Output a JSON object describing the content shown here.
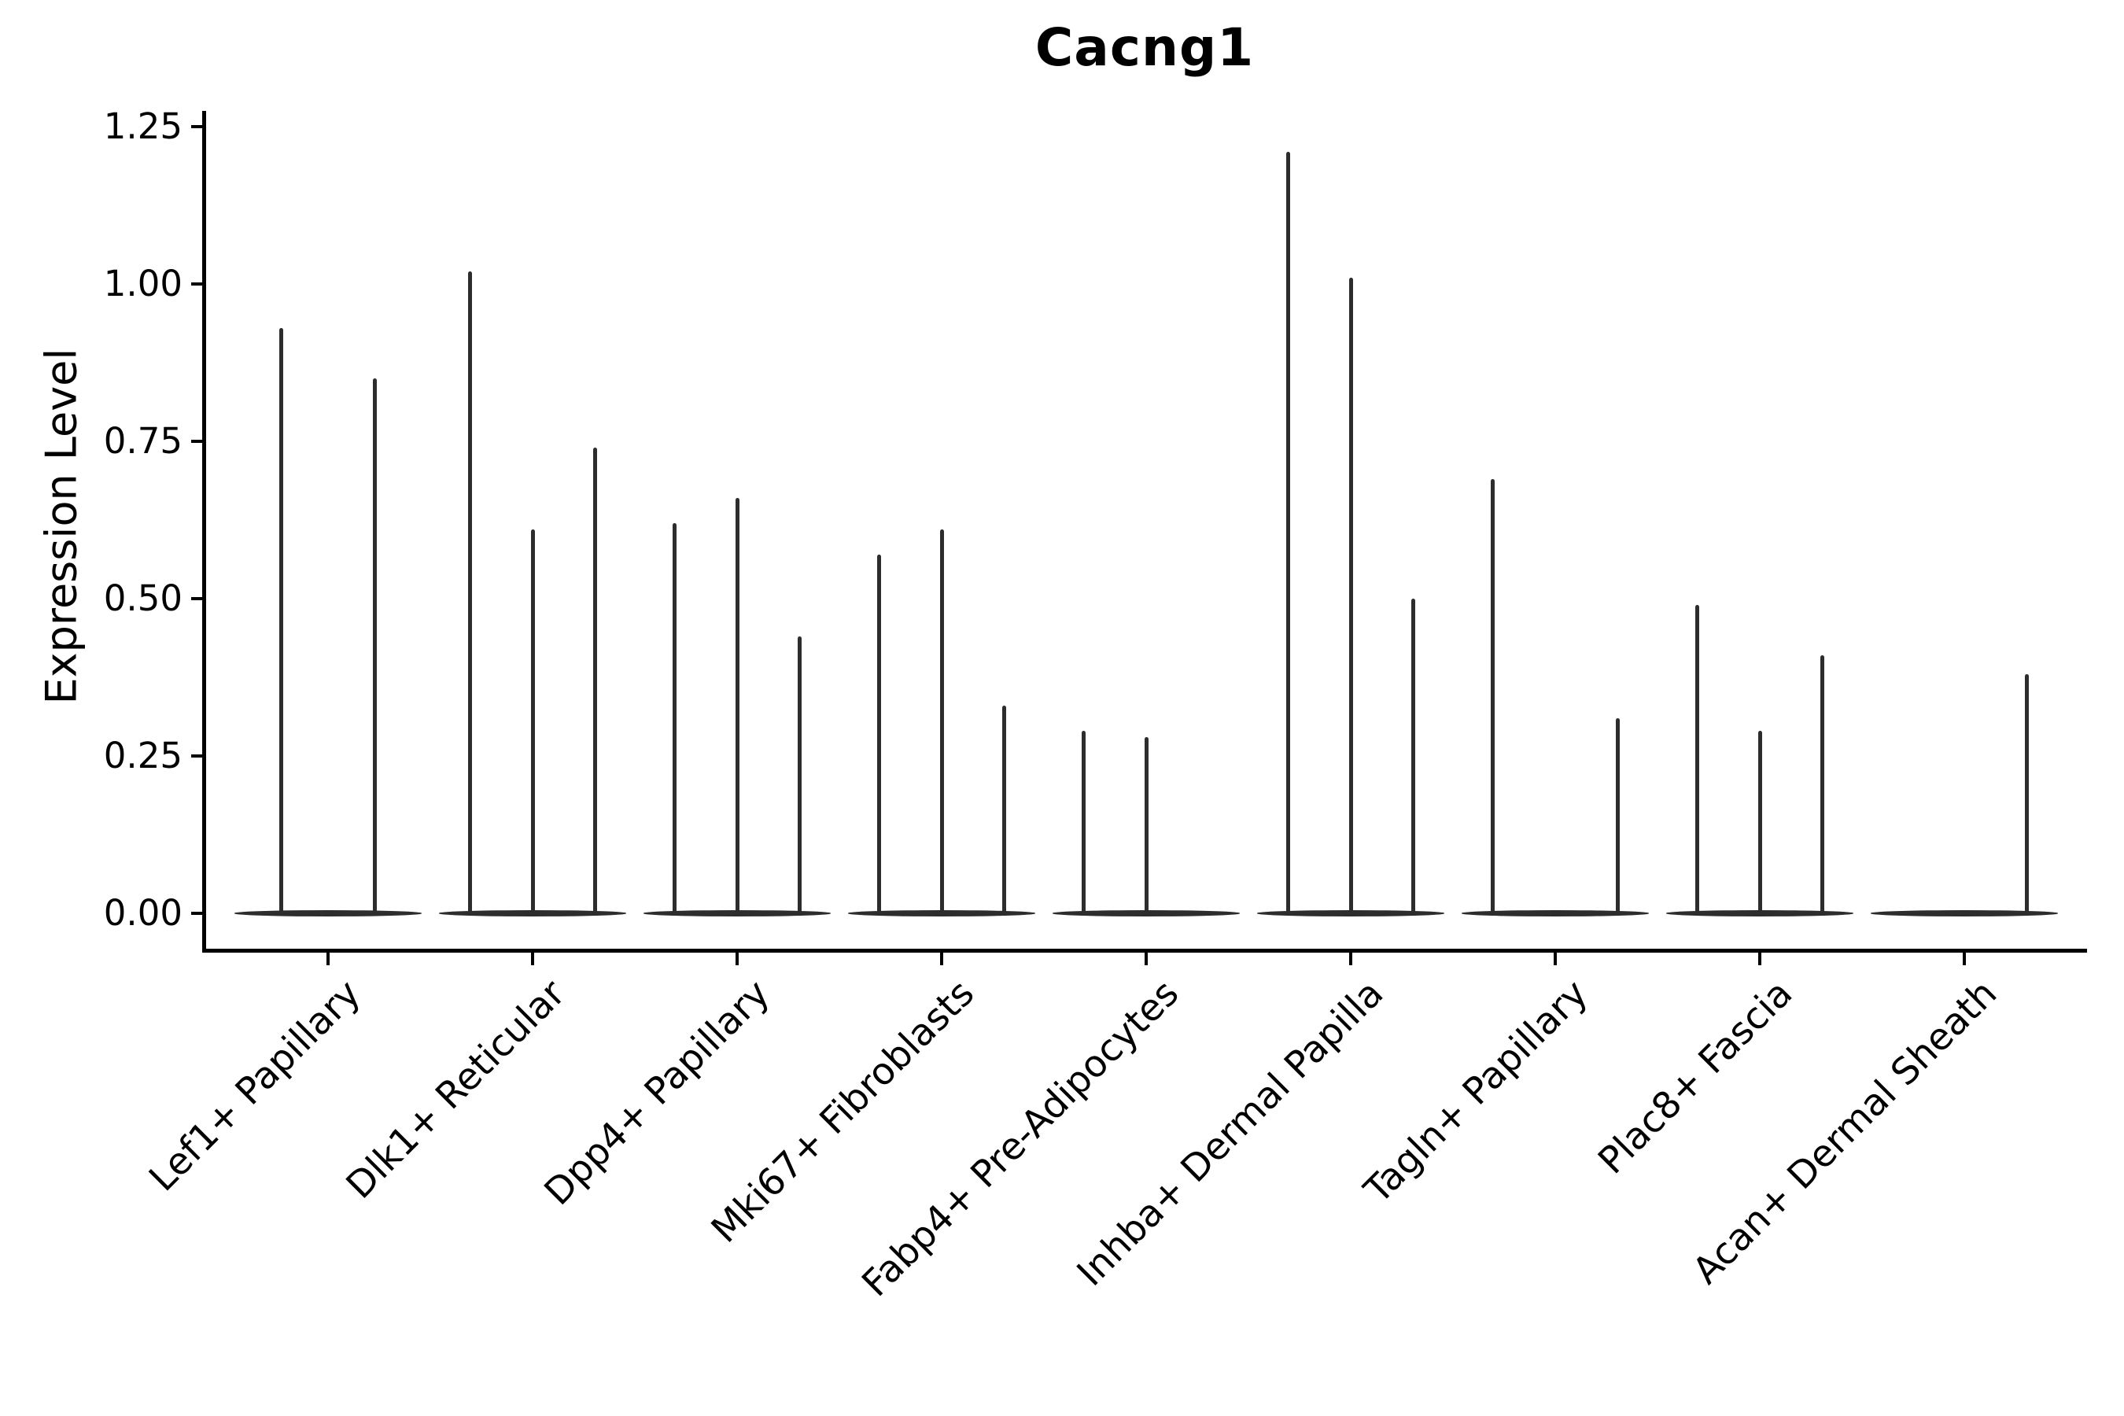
{
  "figure": {
    "title": "Cacng1"
  },
  "chart_data": {
    "type": "violin",
    "title": "Cacng1",
    "xlabel": "",
    "ylabel": "Expression Level",
    "ylim": [
      0,
      1.25
    ],
    "yticks": [
      0,
      0.25,
      0.5,
      0.75,
      1.0,
      1.25
    ],
    "ytick_labels": [
      "0.00",
      "0.25",
      "0.50",
      "0.75",
      "1.00",
      "1.25"
    ],
    "grid": false,
    "legend_position": "none",
    "violin_color": "#2d2d2d",
    "axis_color": "#000000",
    "categories": [
      "Lef1+ Papillary",
      "Dlk1+ Reticular",
      "Dpp4+ Papillary",
      "Mki67+ Fibroblasts",
      "Fabp4+ Pre-Adipocytes",
      "Inhba+ Dermal Papilla",
      "Tagln+ Papillary",
      "Plac8+ Fascia",
      "Acan+ Dermal Sheath"
    ],
    "series": [
      {
        "category": "Lef1+ Papillary",
        "violin_max_expression": [
          0.93,
          0.85
        ]
      },
      {
        "category": "Dlk1+ Reticular",
        "violin_max_expression": [
          1.02,
          0.61,
          0.74
        ]
      },
      {
        "category": "Dpp4+ Papillary",
        "violin_max_expression": [
          0.62,
          0.66,
          0.44
        ]
      },
      {
        "category": "Mki67+ Fibroblasts",
        "violin_max_expression": [
          0.57,
          0.61,
          0.33
        ]
      },
      {
        "category": "Fabp4+ Pre-Adipocytes",
        "violin_max_expression": [
          0.29,
          0.28,
          0
        ]
      },
      {
        "category": "Inhba+ Dermal Papilla",
        "violin_max_expression": [
          1.21,
          1.01,
          0.5
        ]
      },
      {
        "category": "Tagln+ Papillary",
        "violin_max_expression": [
          0.69,
          0,
          0.31
        ]
      },
      {
        "category": "Plac8+ Fascia",
        "violin_max_expression": [
          0.49,
          0.29,
          0.41
        ]
      },
      {
        "category": "Acan+ Dermal Sheath",
        "violin_max_expression": [
          0,
          0,
          0.38
        ]
      }
    ],
    "description": "Violin plot of Cacng1 expression level per cell type; each category contains side-by-side thin violins with flat bases at zero expression. A value of 0 means a flat violin (no spike)."
  }
}
